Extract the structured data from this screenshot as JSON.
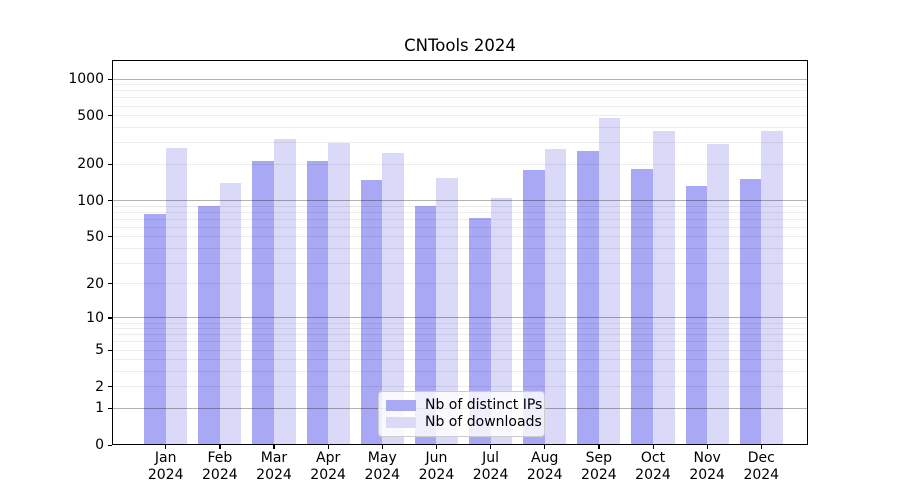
{
  "title": "CNTools 2024",
  "chart_data": {
    "type": "bar",
    "title": "CNTools 2024",
    "categories": [
      "Jan",
      "Feb",
      "Mar",
      "Apr",
      "May",
      "Jun",
      "Jul",
      "Aug",
      "Sep",
      "Oct",
      "Nov",
      "Dec"
    ],
    "year_label": "2024",
    "series": [
      {
        "name": "Nb of distinct IPs",
        "color": "#a8a8f4",
        "values": [
          78,
          90,
          214,
          212,
          148,
          90,
          71,
          178,
          256,
          181,
          133,
          150
        ]
      },
      {
        "name": "Nb of downloads",
        "color": "#dadaf8",
        "values": [
          270,
          140,
          320,
          298,
          247,
          155,
          105,
          268,
          478,
          376,
          295,
          374
        ]
      }
    ],
    "yscale": "log1p",
    "yticks": [
      0,
      1,
      2,
      5,
      10,
      20,
      50,
      100,
      200,
      500,
      1000
    ],
    "ylim": [
      0,
      1433
    ],
    "grid": {
      "major": [
        1,
        10,
        100,
        1000
      ],
      "minor_per_decade": [
        2,
        3,
        4,
        5,
        6,
        7,
        8,
        9
      ]
    },
    "legend_position": "lower center",
    "xlabel": "",
    "ylabel": ""
  }
}
